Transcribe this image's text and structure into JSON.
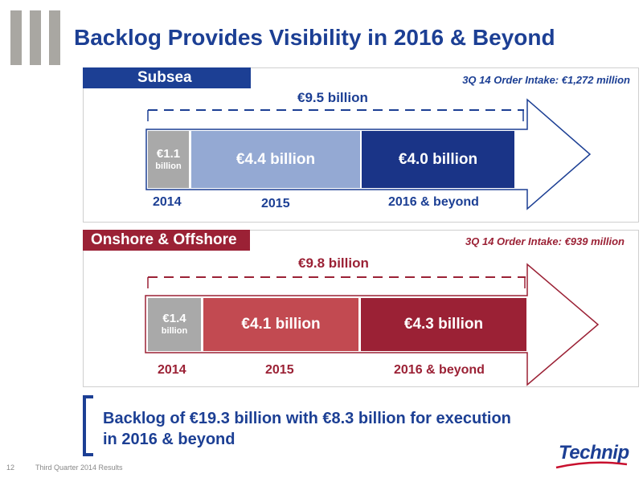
{
  "title": "Backlog Provides Visibility in 2016 & Beyond",
  "subsea": {
    "label": "Subsea",
    "intake": "3Q 14 Order Intake: €1,272 million",
    "total": "€9.5 billion",
    "segments": [
      {
        "amount_line1": "€1.1",
        "amount_line2": "billion",
        "value_billion": 1.1
      },
      {
        "amount": "€4.4 billion",
        "value_billion": 4.4
      },
      {
        "amount": "€4.0 billion",
        "value_billion": 4.0
      }
    ],
    "years": [
      "2014",
      "2015",
      "2016 & beyond"
    ]
  },
  "onshore": {
    "label": "Onshore & Offshore",
    "intake": "3Q 14 Order Intake: €939 million",
    "total": "€9.8 billion",
    "segments": [
      {
        "amount_line1": "€1.4",
        "amount_line2": "billion",
        "value_billion": 1.4
      },
      {
        "amount": "€4.1 billion",
        "value_billion": 4.1
      },
      {
        "amount": "€4.3 billion",
        "value_billion": 4.3
      }
    ],
    "years": [
      "2014",
      "2015",
      "2016 & beyond"
    ]
  },
  "summary": {
    "line1": "Backlog of €19.3 billion with €8.3 billion for execution",
    "line2": "in 2016 & beyond"
  },
  "footer": {
    "page_number": "12",
    "text": "Third Quarter 2014 Results"
  },
  "logo": "Technip",
  "colors": {
    "blue": "#1c3f94",
    "blue_light": "#94a9d3",
    "blue_dark": "#1a3487",
    "red": "#9b2135",
    "red_mid": "#c24a51",
    "grey": "#a9a9a9"
  }
}
